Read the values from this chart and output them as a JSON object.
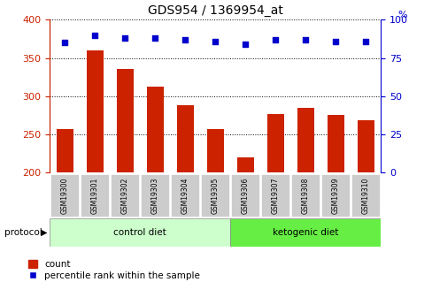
{
  "title": "GDS954 / 1369954_at",
  "samples": [
    "GSM19300",
    "GSM19301",
    "GSM19302",
    "GSM19303",
    "GSM19304",
    "GSM19305",
    "GSM19306",
    "GSM19307",
    "GSM19308",
    "GSM19309",
    "GSM19310"
  ],
  "counts": [
    257,
    360,
    336,
    312,
    288,
    257,
    220,
    277,
    284,
    275,
    268
  ],
  "percentile_ranks": [
    85,
    90,
    88,
    88,
    87,
    86,
    84,
    87,
    87,
    86,
    86
  ],
  "ylim_left": [
    200,
    400
  ],
  "ylim_right": [
    0,
    100
  ],
  "yticks_left": [
    200,
    250,
    300,
    350,
    400
  ],
  "yticks_right": [
    0,
    25,
    50,
    75,
    100
  ],
  "n_control": 6,
  "n_ketogenic": 5,
  "bar_color": "#cc2200",
  "dot_color": "#0000cc",
  "control_color": "#ccffcc",
  "ketogenic_color": "#66ee44",
  "tick_label_bg": "#cccccc",
  "left_axis_color": "#cc2200",
  "right_axis_color": "#0000cc",
  "fig_width": 4.89,
  "fig_height": 3.45,
  "fig_dpi": 100
}
